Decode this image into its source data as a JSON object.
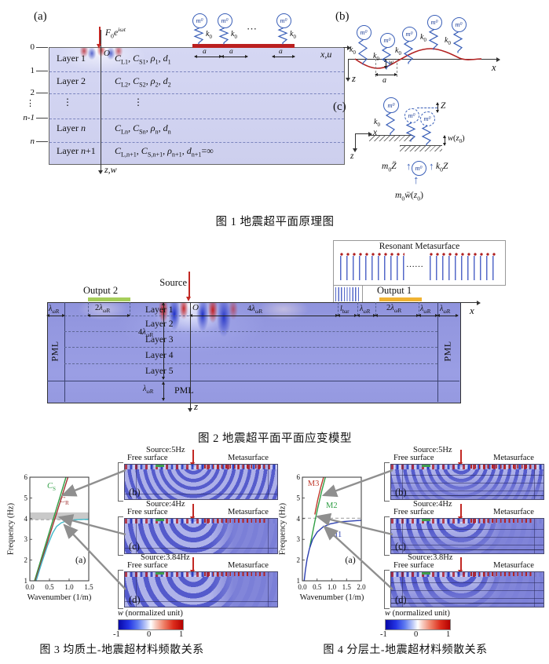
{
  "colors": {
    "wave_red": "#c22823",
    "resonator_blue": "#3a5fb8",
    "soil_fill_light": "#d3d5f2",
    "soil_fill_deep": "#9094dd",
    "output1_bar": "#f0b232",
    "output2_bar": "#a6ce5a",
    "band_gray": "#c3c3c3",
    "colorbar_min": "#0808a8",
    "colorbar_max": "#b40000"
  },
  "sym": {
    "m0": [
      [
        "m",
        "i"
      ],
      [
        "0",
        "sub"
      ]
    ],
    "k0": [
      [
        "k",
        "i"
      ],
      [
        "0",
        "sub"
      ]
    ],
    "a": "a",
    "x": "x",
    "z": "z",
    "w": "w",
    "O": "O",
    "dots_h": "⋯"
  },
  "fig1": {
    "tag_a": "(a)",
    "tag_b": "(b)",
    "tag_c": "(c)",
    "caption": "图 1  地震超平面原理图",
    "axis_xu": "x,u",
    "axis_zw": "z,w",
    "force": [
      [
        "F",
        "i"
      ],
      [
        "0",
        "sub"
      ],
      [
        "e",
        "i"
      ],
      [
        "iωt",
        "supi"
      ]
    ],
    "ticks": [
      [
        [
          "0",
          ""
        ]
      ],
      [
        [
          "1",
          ""
        ]
      ],
      [
        [
          "2",
          ""
        ]
      ],
      [
        [
          "⋮",
          ""
        ]
      ],
      [
        [
          "n",
          "i"
        ],
        [
          "-1",
          ""
        ]
      ],
      [
        [
          "n",
          "i"
        ]
      ]
    ],
    "rows": [
      {
        "name": [
          [
            "Layer 1",
            ""
          ]
        ],
        "props": [
          [
            "C",
            "i"
          ],
          [
            "L1",
            "sub"
          ],
          [
            ", ",
            ""
          ],
          [
            "C",
            "i"
          ],
          [
            "S1",
            "sub"
          ],
          [
            ", ",
            ""
          ],
          [
            "ρ",
            "i"
          ],
          [
            "1",
            "sub"
          ],
          [
            ", ",
            ""
          ],
          [
            "d",
            "i"
          ],
          [
            "1",
            "sub"
          ]
        ]
      },
      {
        "name": [
          [
            "Layer 2",
            ""
          ]
        ],
        "props": [
          [
            "C",
            "i"
          ],
          [
            "L2",
            "sub"
          ],
          [
            ", ",
            ""
          ],
          [
            "C",
            "i"
          ],
          [
            "S2",
            "sub"
          ],
          [
            ", ",
            ""
          ],
          [
            "ρ",
            "i"
          ],
          [
            "2",
            "sub"
          ],
          [
            ", ",
            ""
          ],
          [
            "d",
            "i"
          ],
          [
            "2",
            "sub"
          ]
        ]
      },
      {
        "name": [
          [
            "⋮",
            ""
          ]
        ],
        "props": [
          [
            "⋮",
            ""
          ]
        ]
      },
      {
        "name": [
          [
            "Layer ",
            ""
          ],
          [
            "n",
            "i"
          ]
        ],
        "props": [
          [
            "C",
            "i"
          ],
          [
            "Ln",
            "sub"
          ],
          [
            ", ",
            ""
          ],
          [
            "C",
            "i"
          ],
          [
            "Sn",
            "sub"
          ],
          [
            ", ",
            ""
          ],
          [
            "ρ",
            "i"
          ],
          [
            "n",
            "sub"
          ],
          [
            ", ",
            ""
          ],
          [
            "d",
            "i"
          ],
          [
            "n",
            "sub"
          ]
        ]
      },
      {
        "name": [
          [
            "Layer ",
            ""
          ],
          [
            "n",
            "i"
          ],
          [
            "+1",
            ""
          ]
        ],
        "props": [
          [
            "C",
            "i"
          ],
          [
            "L,n+1",
            "sub"
          ],
          [
            ", ",
            ""
          ],
          [
            "C",
            "i"
          ],
          [
            "S,n+1",
            "sub"
          ],
          [
            ", ",
            ""
          ],
          [
            "ρ",
            "i"
          ],
          [
            "n+1",
            "sub"
          ],
          [
            ", ",
            ""
          ],
          [
            "d",
            "i"
          ],
          [
            "n+1",
            "sub"
          ],
          [
            "=∞",
            ""
          ]
        ]
      }
    ],
    "c": {
      "Z": "Z",
      "wz0": [
        [
          "w",
          "i"
        ],
        [
          "(",
          ""
        ],
        [
          "z",
          "i"
        ],
        [
          "0",
          "sub"
        ],
        [
          ")",
          ""
        ]
      ],
      "inertia": [
        [
          "m",
          "i"
        ],
        [
          "0",
          "sub"
        ],
        [
          "Z̈",
          "i"
        ]
      ],
      "spring": [
        [
          "k",
          "i"
        ],
        [
          "0",
          "sub"
        ],
        [
          "Z",
          "i"
        ]
      ],
      "base": [
        [
          "m",
          "i"
        ],
        [
          "0",
          "sub"
        ],
        [
          "ẅ",
          "i"
        ],
        [
          "(",
          ""
        ],
        [
          "z",
          "i"
        ],
        [
          "0",
          "sub"
        ],
        [
          ")",
          ""
        ]
      ]
    }
  },
  "fig2": {
    "caption": "图 2  地震超平面平面应变模型",
    "inset_title": "Resonant Metasurface",
    "inset_dots": "……",
    "source": "Source",
    "output1": "Output 1",
    "output2": "Output 2",
    "pml": "PML",
    "layers": [
      "Layer 1",
      "Layer 2",
      "Layer 3",
      "Layer 4",
      "Layer 5"
    ],
    "lam": [
      [
        "λ",
        "i"
      ],
      [
        "ωR",
        "sub"
      ]
    ],
    "lam2": [
      [
        "2",
        ""
      ],
      [
        "λ",
        "i"
      ],
      [
        "ωR",
        "sub"
      ]
    ],
    "lam4": [
      [
        "4",
        ""
      ],
      [
        "λ",
        "i"
      ],
      [
        "ωR",
        "sub"
      ]
    ],
    "lbar": [
      [
        "l",
        "i"
      ],
      [
        "bar",
        "sub"
      ]
    ]
  },
  "fig3": {
    "caption": "图 3  均质土-地震超材料频散关系",
    "panels": [
      {
        "tag": "(b)",
        "source": "Source:5Hz",
        "left": "Free surface",
        "right": "Metasurface"
      },
      {
        "tag": "(c)",
        "source": "Source:4Hz",
        "left": "Free surface",
        "right": "Metasurface"
      },
      {
        "tag": "(d)",
        "source": "Source:3.84Hz",
        "left": "Free surface",
        "right": "Metasurface"
      }
    ],
    "colorbar_label": [
      [
        "w",
        "i"
      ],
      [
        " (normalized unit)",
        ""
      ]
    ],
    "colorbar_ticks": [
      "-1",
      "0",
      "1"
    ]
  },
  "fig4": {
    "caption": "图 4  分层土-地震超材料频散关系",
    "panels": [
      {
        "tag": "(b)",
        "source": "Source:5Hz",
        "left": "Free surface",
        "right": "Metasurface"
      },
      {
        "tag": "(c)",
        "source": "Source:4Hz",
        "left": "Free surface",
        "right": "Metasurface"
      },
      {
        "tag": "(d)",
        "source": "Source:3.8Hz",
        "left": "Free surface",
        "right": "Metasurface"
      }
    ],
    "colorbar_label": [
      [
        "w",
        "i"
      ],
      [
        " (normalized unit)",
        ""
      ]
    ],
    "colorbar_ticks": [
      "-1",
      "0",
      "1"
    ]
  },
  "chart_data": [
    {
      "type": "line",
      "title": "",
      "xlabel": "Wavenumber (1/m)",
      "ylabel": "Frequency (Hz)",
      "xlim": [
        0,
        1.5
      ],
      "ylim": [
        1,
        6
      ],
      "xticks": [
        "0.0",
        "0.5",
        "1.0",
        "1.5"
      ],
      "yticks": [
        "1",
        "2",
        "3",
        "4",
        "5",
        "6"
      ],
      "grid": false,
      "legend": false,
      "band": {
        "y0": 3.95,
        "y1": 4.3,
        "color": "#c3c3c3"
      },
      "hline": {
        "y": 3.95,
        "color": "#999999"
      },
      "tag": "(a)",
      "tag_at": [
        1.16,
        1.85
      ],
      "series": [
        {
          "name": "CS",
          "label": [
            [
              "C",
              "i"
            ],
            [
              "S",
              "sub"
            ]
          ],
          "label_at": [
            0.44,
            5.55
          ],
          "color": "#2f9e44",
          "points": [
            [
              0.12,
              1
            ],
            [
              0.92,
              6
            ]
          ]
        },
        {
          "name": "CR",
          "label": [
            [
              "C",
              "i"
            ],
            [
              "R",
              "sub"
            ]
          ],
          "label_at": [
            0.76,
            4.85
          ],
          "color": "#a23535",
          "points": [
            [
              0.14,
              1
            ],
            [
              0.97,
              6
            ]
          ]
        },
        {
          "name": "metasurface-branch",
          "color": "#41b9c9",
          "points": [
            [
              0.16,
              1
            ],
            [
              0.3,
              1.85
            ],
            [
              0.45,
              2.7
            ],
            [
              0.58,
              3.3
            ],
            [
              0.68,
              3.62
            ],
            [
              0.8,
              3.8
            ],
            [
              0.95,
              3.9
            ],
            [
              1.2,
              3.95
            ],
            [
              1.5,
              3.97
            ]
          ]
        }
      ]
    },
    {
      "type": "line",
      "title": "",
      "xlabel": "Wavenumber (1/m)",
      "ylabel": "Frequency (Hz)",
      "xlim": [
        0,
        2
      ],
      "ylim": [
        1,
        6
      ],
      "xticks": [
        "0.0",
        "0.5",
        "1.0",
        "1.5",
        "2.0"
      ],
      "yticks": [
        "1",
        "2",
        "3",
        "4",
        "5",
        "6"
      ],
      "grid": false,
      "legend": false,
      "hline": {
        "y": 4.02,
        "color": "#999999"
      },
      "tag": "(a)",
      "tag_at": [
        1.45,
        1.85
      ],
      "series": [
        {
          "name": "M3",
          "label_at": [
            0.18,
            5.65
          ],
          "color": "#c0392b",
          "points": [
            [
              0.42,
              4.2
            ],
            [
              0.52,
              4.9
            ],
            [
              0.62,
              5.5
            ],
            [
              0.72,
              6
            ]
          ]
        },
        {
          "name": "M2",
          "label_at": [
            0.8,
            4.6
          ],
          "color": "#2f9e44",
          "points": [
            [
              0.25,
              2.62
            ],
            [
              0.33,
              3.2
            ],
            [
              0.42,
              3.85
            ],
            [
              0.52,
              4.5
            ],
            [
              0.65,
              5.3
            ],
            [
              0.78,
              6
            ]
          ]
        },
        {
          "name": "M1",
          "label_at": [
            0.95,
            3.18
          ],
          "color": "#2c3fb0",
          "points": [
            [
              0.06,
              1
            ],
            [
              0.1,
              1.5
            ],
            [
              0.16,
              2.05
            ],
            [
              0.24,
              2.55
            ],
            [
              0.35,
              3
            ],
            [
              0.5,
              3.35
            ],
            [
              0.7,
              3.6
            ],
            [
              0.95,
              3.75
            ],
            [
              1.3,
              3.85
            ],
            [
              2,
              3.92
            ]
          ]
        }
      ]
    }
  ]
}
